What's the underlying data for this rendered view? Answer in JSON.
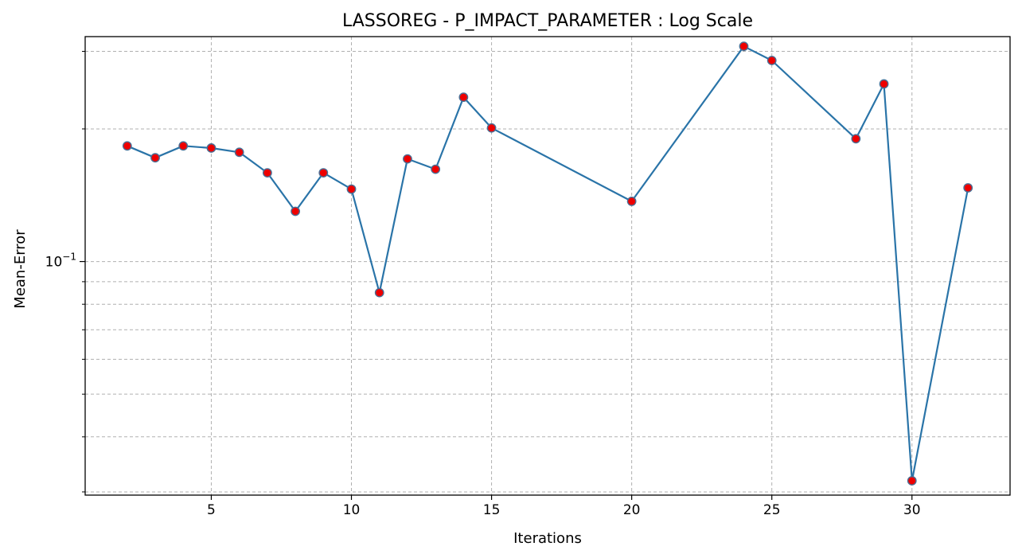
{
  "chart_data": {
    "type": "line",
    "title": "LASSOREG - P_IMPACT_PARAMETER : Log Scale",
    "xlabel": "Iterations",
    "ylabel": "Mean-Error",
    "yscale": "log",
    "grid": true,
    "xlim": [
      0.5,
      33.5
    ],
    "ylim": [
      0.0295,
      0.324
    ],
    "xticks": [
      5,
      10,
      15,
      20,
      25,
      30
    ],
    "ytick_major": {
      "value": 0.1,
      "base": "10",
      "exponent": "−1"
    },
    "ytick_minor": [
      0.03,
      0.04,
      0.05,
      0.06,
      0.07,
      0.08,
      0.09,
      0.2,
      0.3
    ],
    "colors": {
      "line": "#2a74a8",
      "marker_face": "#ee0000",
      "marker_edge": "#4a6f95",
      "grid": "#b0b0b0"
    },
    "series": [
      {
        "x": [
          2,
          3,
          4,
          5,
          6,
          7,
          8,
          9,
          10,
          11,
          12,
          13,
          14,
          15,
          20,
          24,
          25,
          28,
          29,
          30,
          32
        ],
        "y": [
          0.183,
          0.172,
          0.183,
          0.181,
          0.177,
          0.159,
          0.13,
          0.159,
          0.146,
          0.085,
          0.171,
          0.162,
          0.236,
          0.201,
          0.137,
          0.308,
          0.286,
          0.19,
          0.253,
          0.0318,
          0.147
        ]
      }
    ]
  }
}
